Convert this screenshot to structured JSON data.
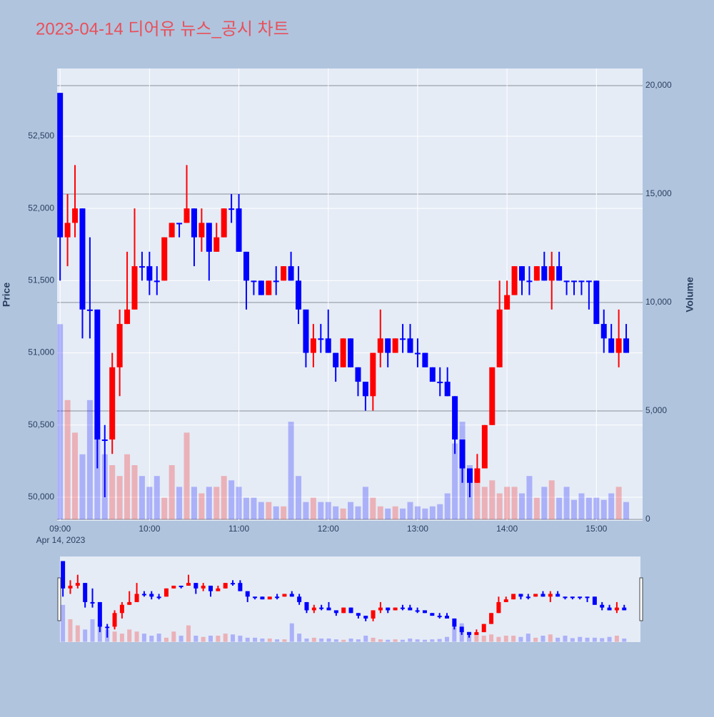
{
  "chart_data": {
    "type": "candlestick",
    "title": "2023-04-14 디어유 뉴스_공시 차트",
    "y_label": "Price",
    "y2_label": "Volume",
    "x_date_label": "Apr 14, 2023",
    "increasing_color": "#ff0000",
    "decreasing_color": "#0000ff",
    "x": [
      "09:00",
      "09:05",
      "09:10",
      "09:15",
      "09:20",
      "09:25",
      "09:30",
      "09:35",
      "09:40",
      "09:45",
      "09:50",
      "09:55",
      "10:00",
      "10:05",
      "10:10",
      "10:15",
      "10:20",
      "10:25",
      "10:30",
      "10:35",
      "10:40",
      "10:45",
      "10:50",
      "10:55",
      "11:00",
      "11:05",
      "11:10",
      "11:15",
      "11:20",
      "11:25",
      "11:30",
      "11:35",
      "11:40",
      "11:45",
      "11:50",
      "11:55",
      "12:00",
      "12:05",
      "12:10",
      "12:15",
      "12:20",
      "12:25",
      "12:30",
      "12:35",
      "12:40",
      "12:45",
      "12:50",
      "12:55",
      "13:00",
      "13:05",
      "13:10",
      "13:15",
      "13:20",
      "13:25",
      "13:30",
      "13:35",
      "13:40",
      "13:45",
      "13:50",
      "13:55",
      "14:00",
      "14:05",
      "14:10",
      "14:15",
      "14:20",
      "14:25",
      "14:30",
      "14:35",
      "14:40",
      "14:45",
      "14:50",
      "14:55",
      "15:00",
      "15:05",
      "15:10",
      "15:15",
      "15:20"
    ],
    "open": [
      52800,
      51800,
      51900,
      52000,
      51300,
      51300,
      50400,
      50400,
      50900,
      51200,
      51300,
      51600,
      51600,
      51500,
      51500,
      51800,
      51900,
      51900,
      52000,
      51800,
      51900,
      51700,
      51800,
      52000,
      52000,
      51700,
      51500,
      51500,
      51400,
      51500,
      51500,
      51600,
      51500,
      51300,
      51000,
      51100,
      51100,
      51000,
      50900,
      51100,
      50900,
      50800,
      50700,
      51000,
      51100,
      51000,
      51100,
      51100,
      51000,
      51000,
      50900,
      50800,
      50800,
      50700,
      50400,
      50200,
      50100,
      50200,
      50500,
      50900,
      51300,
      51400,
      51600,
      51500,
      51500,
      51600,
      51500,
      51600,
      51500,
      51500,
      51500,
      51500,
      51500,
      51200,
      51100,
      51000,
      51100
    ],
    "high": [
      52800,
      52100,
      52300,
      52000,
      51800,
      51300,
      50500,
      51000,
      51300,
      51700,
      52000,
      51700,
      51700,
      51600,
      51800,
      51900,
      51900,
      52300,
      52000,
      52000,
      51900,
      51900,
      52000,
      52100,
      52100,
      51700,
      51500,
      51500,
      51500,
      51600,
      51600,
      51700,
      51600,
      51300,
      51200,
      51200,
      51300,
      51000,
      51100,
      51100,
      50900,
      50800,
      51000,
      51300,
      51100,
      51100,
      51200,
      51200,
      51100,
      51000,
      50900,
      50900,
      50900,
      50700,
      50400,
      50200,
      50300,
      50500,
      50900,
      51500,
      51500,
      51600,
      51600,
      51600,
      51600,
      51700,
      51700,
      51700,
      51500,
      51500,
      51500,
      51500,
      51500,
      51300,
      51200,
      51300,
      51200
    ],
    "low": [
      51500,
      51600,
      51800,
      51100,
      51100,
      50200,
      50000,
      50300,
      50700,
      51200,
      51300,
      51500,
      51400,
      51400,
      51500,
      51800,
      51800,
      51900,
      51600,
      51700,
      51500,
      51700,
      51800,
      51900,
      51700,
      51300,
      51400,
      51400,
      51400,
      51400,
      51500,
      51500,
      51200,
      50900,
      50900,
      51000,
      51000,
      50800,
      50900,
      50900,
      50700,
      50600,
      50600,
      50900,
      50900,
      51000,
      51000,
      51000,
      50900,
      50900,
      50800,
      50700,
      50700,
      50300,
      50100,
      50000,
      50100,
      50200,
      50500,
      50900,
      51300,
      51400,
      51400,
      51400,
      51500,
      51500,
      51300,
      51500,
      51400,
      51400,
      51400,
      51300,
      51200,
      51000,
      51000,
      50900,
      51000
    ],
    "close": [
      51800,
      51900,
      52000,
      51300,
      51300,
      50400,
      50400,
      50900,
      51200,
      51300,
      51600,
      51600,
      51500,
      51500,
      51800,
      51900,
      51900,
      52000,
      51800,
      51900,
      51700,
      51800,
      52000,
      52000,
      51700,
      51500,
      51500,
      51400,
      51500,
      51500,
      51600,
      51500,
      51300,
      51000,
      51100,
      51100,
      51000,
      50900,
      51100,
      50900,
      50800,
      50700,
      51000,
      51100,
      51000,
      51100,
      51100,
      51000,
      51000,
      50900,
      50800,
      50800,
      50700,
      50400,
      50200,
      50100,
      50200,
      50500,
      50900,
      51300,
      51400,
      51600,
      51500,
      51500,
      51600,
      51500,
      51600,
      51500,
      51500,
      51500,
      51500,
      51500,
      51200,
      51100,
      51000,
      51100,
      51000
    ],
    "volume": [
      9000,
      5500,
      4000,
      3000,
      5500,
      4500,
      3000,
      2500,
      2000,
      3000,
      2500,
      2000,
      1500,
      2000,
      1000,
      2500,
      1500,
      4000,
      1500,
      1200,
      1500,
      1500,
      2000,
      1800,
      1500,
      1000,
      1000,
      800,
      800,
      600,
      600,
      4500,
      2000,
      800,
      1000,
      800,
      800,
      600,
      500,
      800,
      600,
      1500,
      1000,
      600,
      500,
      600,
      500,
      800,
      600,
      500,
      600,
      700,
      1200,
      3500,
      4500,
      2500,
      2000,
      1500,
      1800,
      1200,
      1500,
      1500,
      1200,
      2000,
      1000,
      1500,
      1800,
      1000,
      1500,
      900,
      1200,
      1000,
      1000,
      900,
      1200,
      1500,
      800
    ],
    "xlim": [
      "08:58",
      "15:31"
    ],
    "xticks": [
      "09:00",
      "10:00",
      "11:00",
      "12:00",
      "13:00",
      "14:00",
      "15:00"
    ],
    "ylim": [
      49837,
      52969
    ],
    "yticks": [
      {
        "value": 50000,
        "label": "50,000"
      },
      {
        "value": 50500,
        "label": "50,500"
      },
      {
        "value": 51000,
        "label": "51,000"
      },
      {
        "value": 51500,
        "label": "51,500"
      },
      {
        "value": 52000,
        "label": "52,000"
      },
      {
        "value": 52500,
        "label": "52,500"
      }
    ],
    "y2lim": [
      -66,
      20789
    ],
    "y2ticks": [
      0,
      {
        "value": 5000,
        "label": "5,000"
      },
      {
        "value": 10000,
        "label": "10,000"
      },
      {
        "value": 15000,
        "label": "15,000"
      },
      {
        "value": 20000,
        "label": "20,000"
      }
    ],
    "grid": true,
    "range_slider": true
  }
}
